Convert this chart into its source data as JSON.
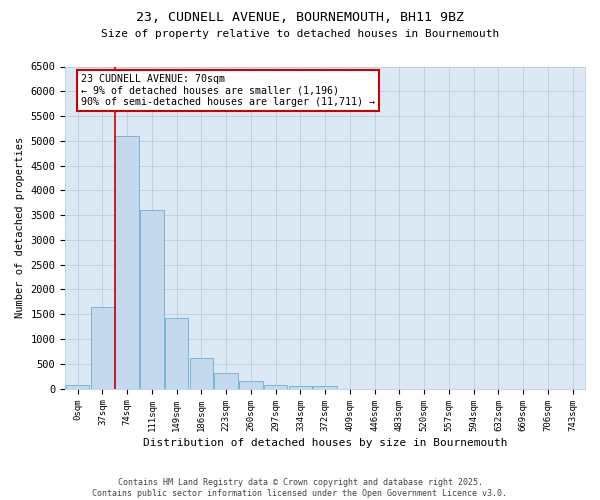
{
  "title_line1": "23, CUDNELL AVENUE, BOURNEMOUTH, BH11 9BZ",
  "title_line2": "Size of property relative to detached houses in Bournemouth",
  "xlabel": "Distribution of detached houses by size in Bournemouth",
  "ylabel": "Number of detached properties",
  "footnote_line1": "Contains HM Land Registry data © Crown copyright and database right 2025.",
  "footnote_line2": "Contains public sector information licensed under the Open Government Licence v3.0.",
  "bar_labels": [
    "0sqm",
    "37sqm",
    "74sqm",
    "111sqm",
    "149sqm",
    "186sqm",
    "223sqm",
    "260sqm",
    "297sqm",
    "334sqm",
    "372sqm",
    "409sqm",
    "446sqm",
    "483sqm",
    "520sqm",
    "557sqm",
    "594sqm",
    "632sqm",
    "669sqm",
    "706sqm",
    "743sqm"
  ],
  "bar_values": [
    70,
    1650,
    5100,
    3600,
    1420,
    620,
    310,
    155,
    80,
    60,
    60,
    0,
    0,
    0,
    0,
    0,
    0,
    0,
    0,
    0,
    0
  ],
  "bar_color": "#c5d9ee",
  "bar_edge_color": "#6baed6",
  "vline_color": "#cc0000",
  "vline_x": 1.525,
  "annotation_line1": "23 CUDNELL AVENUE: 70sqm",
  "annotation_line2": "← 9% of detached houses are smaller (1,196)",
  "annotation_line3": "90% of semi-detached houses are larger (11,711) →",
  "annotation_box_facecolor": "#ffffff",
  "annotation_box_edgecolor": "#cc0000",
  "ylim_max": 6500,
  "yticks": [
    0,
    500,
    1000,
    1500,
    2000,
    2500,
    3000,
    3500,
    4000,
    4500,
    5000,
    5500,
    6000,
    6500
  ],
  "bg_color": "#ffffff",
  "plot_bg_color": "#dce9f5",
  "grid_color": "#b8cfe0"
}
